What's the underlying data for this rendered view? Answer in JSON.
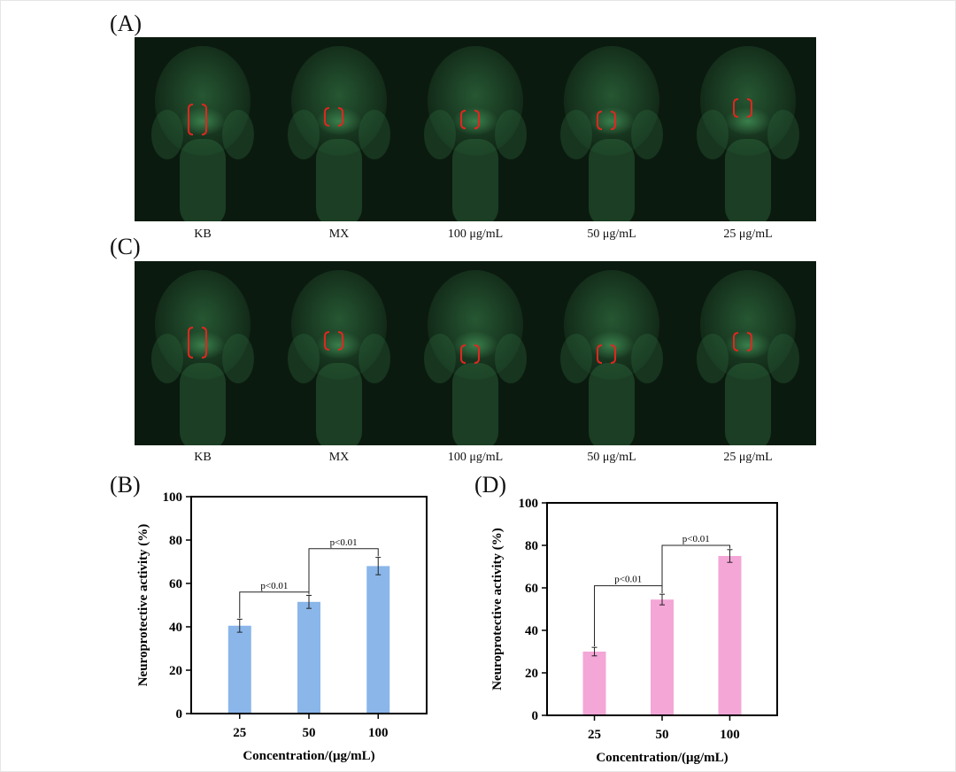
{
  "panels": {
    "A": "(A)",
    "B": "(B)",
    "C": "(C)",
    "D": "(D)"
  },
  "image_captions": [
    "KB",
    "MX",
    "100 μg/mL",
    "50 μg/mL",
    "25 μg/mL"
  ],
  "colors": {
    "fluorescence_background": "#0b1a0f",
    "fish_green": "#2f6b3e",
    "bracket_red": "#e0271f",
    "bar_blue": "#8ab6ea",
    "bar_pink": "#f4a6d7"
  },
  "chart_data": [
    {
      "id": "B",
      "type": "bar",
      "categories": [
        "25",
        "50",
        "100"
      ],
      "values": [
        40.5,
        51.5,
        68
      ],
      "errors": [
        3,
        3,
        4
      ],
      "xlabel": "Concentration/(μg/mL)",
      "ylabel": "Neuroprotective activity (%)",
      "ylim": [
        0,
        100
      ],
      "yticks": [
        "0",
        "20",
        "40",
        "60",
        "80",
        "100"
      ],
      "grid": false,
      "color": "#8ab6ea",
      "annotations": [
        {
          "from": 0,
          "to": 1,
          "level": 56,
          "text": "p<0.01"
        },
        {
          "from": 1,
          "to": 2,
          "level": 76,
          "text": "p<0.01"
        }
      ]
    },
    {
      "id": "D",
      "type": "bar",
      "categories": [
        "25",
        "50",
        "100"
      ],
      "values": [
        30,
        54.5,
        75
      ],
      "errors": [
        2,
        2.5,
        3
      ],
      "xlabel": "Concentration/(μg/mL)",
      "ylabel": "Neuroprotective activity (%)",
      "ylim": [
        0,
        100
      ],
      "yticks": [
        "0",
        "20",
        "40",
        "60",
        "80",
        "100"
      ],
      "grid": false,
      "color": "#f4a6d7",
      "annotations": [
        {
          "from": 0,
          "to": 1,
          "level": 61,
          "text": "p<0.01"
        },
        {
          "from": 1,
          "to": 2,
          "level": 80,
          "text": "p<0.01"
        }
      ]
    }
  ]
}
